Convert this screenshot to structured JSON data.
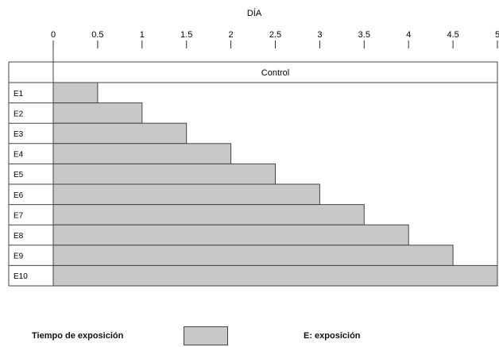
{
  "chart_data": {
    "type": "bar",
    "orientation": "horizontal",
    "xlabel": "DÍA",
    "xlim": [
      0,
      5
    ],
    "x_ticks": [
      0,
      0.5,
      1,
      1.5,
      2,
      2.5,
      3,
      3.5,
      4,
      4.5,
      5
    ],
    "x_tick_labels": [
      "0",
      "0.5",
      "1",
      "1.5",
      "2",
      "2.5",
      "3",
      "3.5",
      "4",
      "4.5",
      "5"
    ],
    "control_label": "Control",
    "categories": [
      "E1",
      "E2",
      "E3",
      "E4",
      "E5",
      "E6",
      "E7",
      "E8",
      "E9",
      "E10"
    ],
    "values": [
      0.5,
      1,
      1.5,
      2,
      2.5,
      3,
      3.5,
      4,
      4.5,
      5
    ],
    "bar_color": "#c8c8c8",
    "grid": false
  },
  "legend": {
    "series_label": "Tiempo de exposición",
    "note": "E: exposición"
  }
}
